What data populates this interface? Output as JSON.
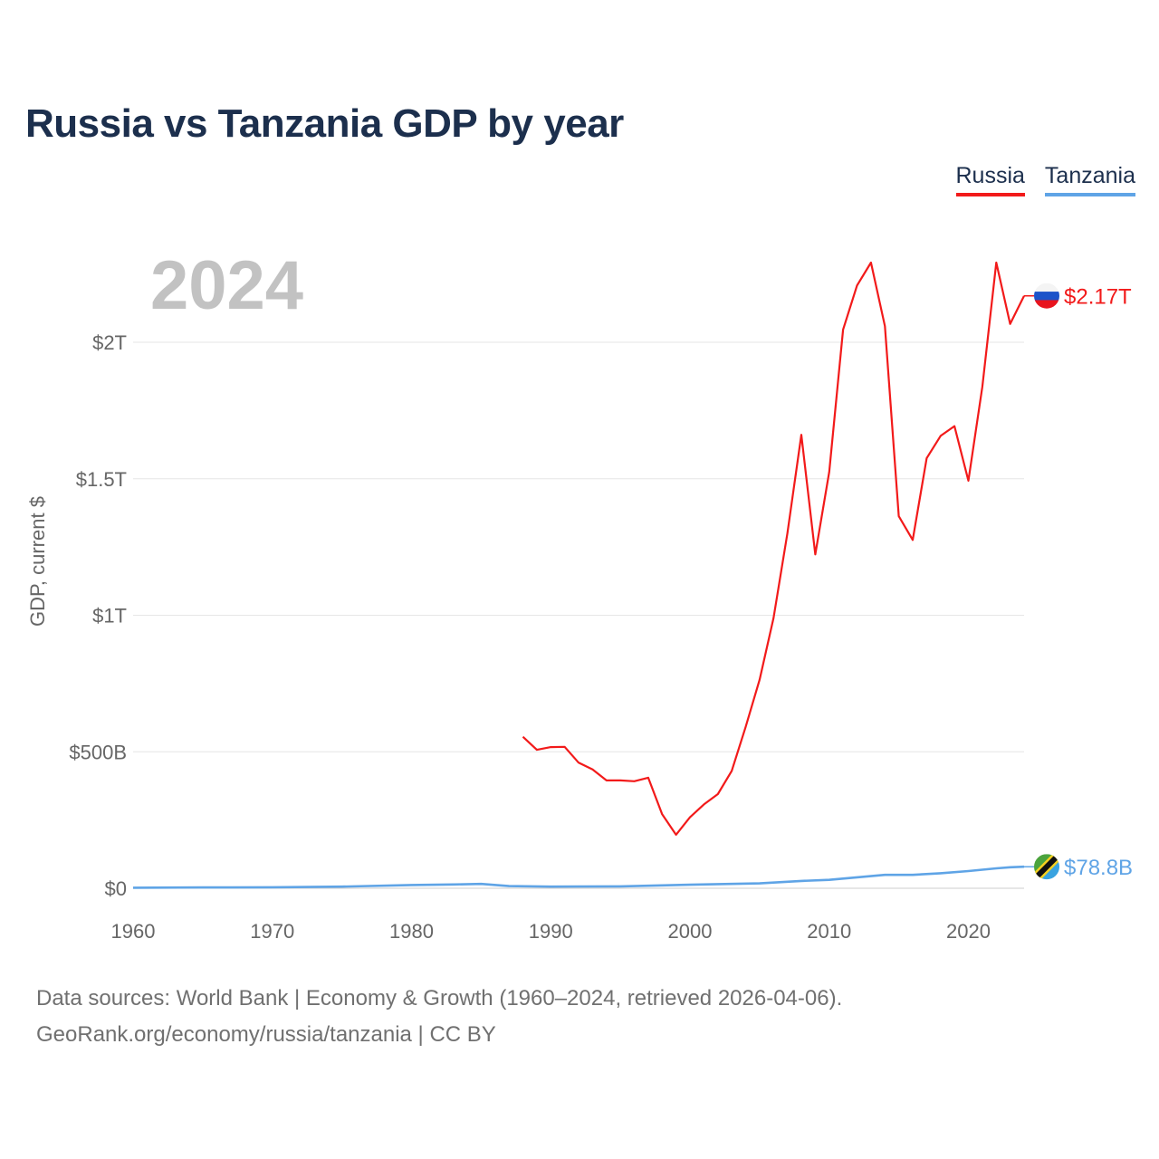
{
  "title": "Russia vs Tanzania GDP by year",
  "year": "2024",
  "legend": [
    {
      "name": "Russia",
      "color": "#f21a1a"
    },
    {
      "name": "Tanzania",
      "color": "#5fa4e6"
    }
  ],
  "footer": {
    "line1": "Data sources: World Bank | Economy & Growth (1960–2024, retrieved 2026-04-06).",
    "line2": "GeoRank.org/economy/russia/tanzania | CC BY"
  },
  "chart_data": {
    "type": "line",
    "title": "Russia vs Tanzania GDP by year",
    "xlabel": "",
    "ylabel": "GDP, current $",
    "xlim": [
      1960,
      2024
    ],
    "ylim": [
      0,
      2000000000000
    ],
    "x_ticks": [
      1960,
      1970,
      1980,
      1990,
      2000,
      2010,
      2020
    ],
    "x_tick_labels": [
      "1960",
      "1970",
      "1980",
      "1990",
      "2000",
      "2010",
      "2020"
    ],
    "y_ticks": [
      0,
      500000000000,
      1000000000000,
      1500000000000,
      2000000000000
    ],
    "y_tick_labels": [
      "$0",
      "$500B",
      "$1T",
      "$1.5T",
      "$2T"
    ],
    "grid": true,
    "legend_position": "top-right",
    "series": [
      {
        "name": "Russia",
        "color": "#f21a1a",
        "end_label": "$2.17T",
        "points": [
          [
            1988,
            555
          ],
          [
            1989,
            507
          ],
          [
            1990,
            517
          ],
          [
            1991,
            518
          ],
          [
            1992,
            460
          ],
          [
            1993,
            435
          ],
          [
            1994,
            395
          ],
          [
            1995,
            395
          ],
          [
            1996,
            392
          ],
          [
            1997,
            405
          ],
          [
            1998,
            271
          ],
          [
            1999,
            196
          ],
          [
            2000,
            260
          ],
          [
            2001,
            307
          ],
          [
            2002,
            345
          ],
          [
            2003,
            430
          ],
          [
            2004,
            591
          ],
          [
            2005,
            764
          ],
          [
            2006,
            990
          ],
          [
            2007,
            1300
          ],
          [
            2008,
            1661
          ],
          [
            2009,
            1223
          ],
          [
            2010,
            1525
          ],
          [
            2011,
            2046
          ],
          [
            2012,
            2208
          ],
          [
            2013,
            2292
          ],
          [
            2014,
            2059
          ],
          [
            2015,
            1363
          ],
          [
            2016,
            1276
          ],
          [
            2017,
            1575
          ],
          [
            2018,
            1657
          ],
          [
            2019,
            1693
          ],
          [
            2020,
            1493
          ],
          [
            2021,
            1837
          ],
          [
            2022,
            2292
          ],
          [
            2023,
            2067
          ],
          [
            2024,
            2170
          ]
        ]
      },
      {
        "name": "Tanzania",
        "color": "#5fa4e6",
        "end_label": "$78.8B",
        "points": [
          [
            1960,
            2
          ],
          [
            1965,
            3
          ],
          [
            1970,
            3.5
          ],
          [
            1975,
            6
          ],
          [
            1980,
            12
          ],
          [
            1983,
            14
          ],
          [
            1985,
            16
          ],
          [
            1987,
            8
          ],
          [
            1990,
            6
          ],
          [
            1995,
            7
          ],
          [
            2000,
            13
          ],
          [
            2005,
            18
          ],
          [
            2008,
            27
          ],
          [
            2010,
            31
          ],
          [
            2012,
            40
          ],
          [
            2014,
            49
          ],
          [
            2016,
            49
          ],
          [
            2018,
            55
          ],
          [
            2020,
            63
          ],
          [
            2022,
            73
          ],
          [
            2023,
            77
          ],
          [
            2024,
            78.8
          ]
        ],
        "units_note": "values in $ billions"
      }
    ]
  }
}
